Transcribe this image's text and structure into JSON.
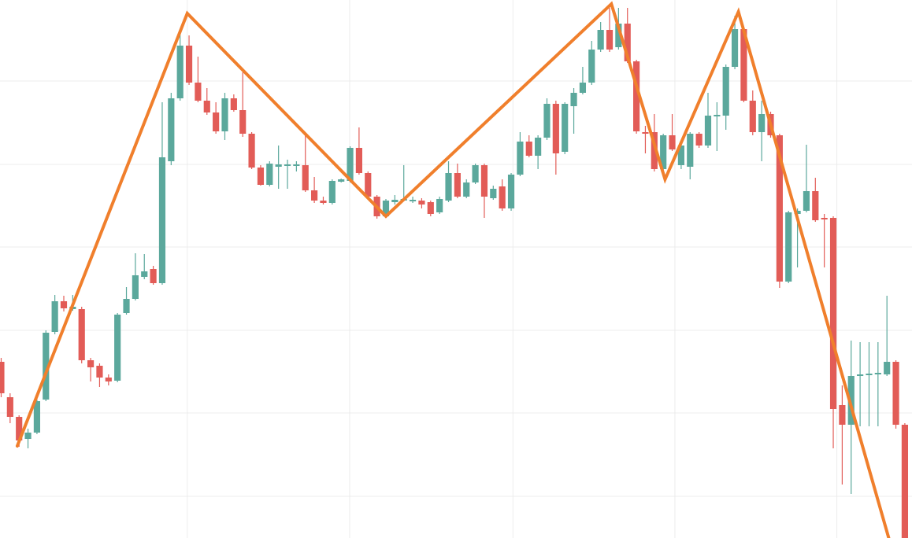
{
  "chart_data": {
    "type": "candlestick",
    "up_color": "#5ba89c",
    "down_color": "#e25c57",
    "grid": true,
    "grid_color": "#ececec",
    "xlim": [
      -0.13,
      101.8
    ],
    "ylim": [
      0,
      684
    ],
    "xticks": [
      20.8,
      38.95,
      57.2,
      75.3,
      93.4
    ],
    "yticks": [
      53,
      159,
      264,
      370,
      475,
      581
    ],
    "open": [
      224,
      179,
      154,
      126,
      134,
      176,
      262,
      301,
      291,
      291,
      226,
      219,
      204,
      200,
      286,
      304,
      332,
      342,
      324,
      479,
      559,
      626,
      579,
      556,
      541,
      517,
      559,
      544,
      514,
      471,
      449,
      472,
      473,
      473,
      474,
      442,
      429,
      426,
      453,
      454,
      496,
      464,
      434,
      409,
      427,
      429,
      428,
      429,
      427,
      414,
      429,
      464,
      434,
      452,
      474,
      432,
      447,
      419,
      462,
      504,
      486,
      509,
      552,
      491,
      549,
      566,
      579,
      621,
      646,
      624,
      654,
      606,
      516,
      516,
      469,
      512,
      474,
      472,
      514,
      499,
      536,
      537,
      599,
      647,
      556,
      516,
      539,
      512,
      326,
      412,
      416,
      441,
      407,
      407,
      169,
      144,
      206,
      207,
      208,
      208,
      224,
      144
    ],
    "high": [
      229,
      184,
      156,
      139,
      176,
      264,
      309,
      308,
      309,
      294,
      229,
      222,
      208,
      286,
      319,
      362,
      361,
      346,
      554,
      566,
      644,
      639,
      612,
      572,
      554,
      566,
      564,
      592,
      516,
      474,
      479,
      499,
      481,
      479,
      512,
      459,
      434,
      456,
      457,
      498,
      522,
      466,
      436,
      431,
      436,
      474,
      434,
      432,
      429,
      434,
      479,
      476,
      456,
      476,
      476,
      448,
      456,
      464,
      516,
      512,
      512,
      559,
      556,
      554,
      572,
      599,
      632,
      656,
      674,
      674,
      674,
      608,
      524,
      539,
      514,
      539,
      501,
      516,
      516,
      566,
      554,
      602,
      664,
      649,
      569,
      556,
      542,
      514,
      416,
      419,
      500,
      458,
      412,
      409,
      194,
      251,
      249,
      249,
      249,
      308,
      226,
      146
    ],
    "low": [
      179,
      146,
      116,
      114,
      132,
      174,
      259,
      288,
      289,
      222,
      199,
      192,
      194,
      198,
      284,
      302,
      329,
      322,
      322,
      474,
      556,
      576,
      554,
      538,
      514,
      506,
      542,
      510,
      469,
      448,
      447,
      444,
      444,
      466,
      440,
      426,
      424,
      424,
      452,
      452,
      462,
      432,
      406,
      407,
      424,
      428,
      426,
      419,
      409,
      412,
      427,
      432,
      432,
      450,
      407,
      430,
      416,
      416,
      460,
      484,
      469,
      506,
      462,
      488,
      514,
      564,
      576,
      618,
      618,
      621,
      604,
      514,
      489,
      466,
      459,
      492,
      469,
      456,
      496,
      496,
      492,
      519,
      596,
      554,
      512,
      479,
      509,
      318,
      324,
      344,
      414,
      402,
      344,
      114,
      68,
      56,
      142,
      142,
      142,
      206,
      139,
      0
    ],
    "close": [
      184,
      154,
      124,
      134,
      174,
      261,
      301,
      292,
      294,
      226,
      217,
      204,
      199,
      284,
      304,
      334,
      339,
      324,
      484,
      559,
      626,
      579,
      556,
      541,
      517,
      559,
      544,
      514,
      471,
      449,
      476,
      475,
      475,
      475,
      442,
      429,
      426,
      454,
      456,
      496,
      464,
      434,
      409,
      429,
      430,
      431,
      430,
      424,
      412,
      431,
      464,
      434,
      452,
      474,
      434,
      444,
      419,
      462,
      504,
      486,
      509,
      552,
      489,
      552,
      566,
      579,
      621,
      646,
      621,
      654,
      606,
      517,
      514,
      469,
      512,
      494,
      499,
      514,
      499,
      537,
      538,
      599,
      647,
      556,
      516,
      539,
      512,
      326,
      414,
      416,
      441,
      404,
      405,
      164,
      144,
      206,
      208,
      209,
      210,
      224,
      144,
      0
    ],
    "overlay": {
      "type": "line",
      "color": "#f07f2c",
      "x": [
        1.8,
        20.8,
        43.0,
        68.2,
        74.2,
        82.4,
        99.2
      ],
      "values": [
        117,
        667,
        409,
        679,
        456,
        669,
        0
      ]
    }
  }
}
